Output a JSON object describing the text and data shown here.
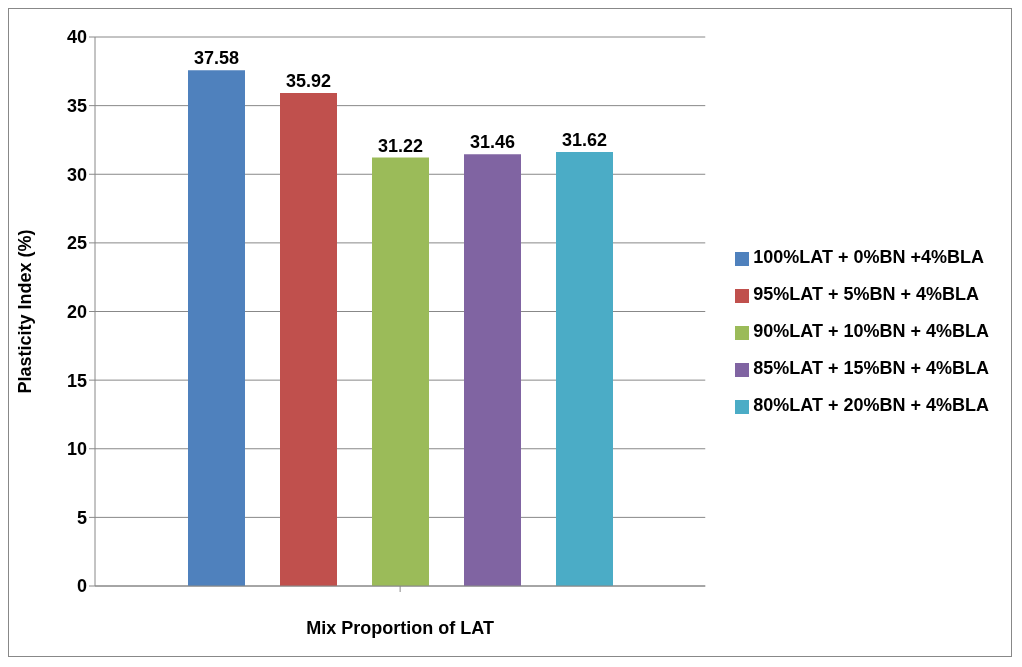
{
  "chart_data": {
    "type": "bar",
    "xlabel": "Mix Proportion of LAT",
    "ylabel": "Plasticity Index (%)",
    "categories": [
      null
    ],
    "series": [
      {
        "name": "100%LAT + 0%BN +4%BLA",
        "color": "#4f81bd",
        "values": [
          37.58
        ]
      },
      {
        "name": "95%LAT + 5%BN + 4%BLA",
        "color": "#c0504d",
        "values": [
          35.92
        ]
      },
      {
        "name": "90%LAT + 10%BN + 4%BLA",
        "color": "#9bbb59",
        "values": [
          31.22
        ]
      },
      {
        "name": "85%LAT + 15%BN + 4%BLA",
        "color": "#8064a2",
        "values": [
          31.46
        ]
      },
      {
        "name": "80%LAT + 20%BN + 4%BLA",
        "color": "#4bacc6",
        "values": [
          31.62
        ]
      }
    ],
    "ylim": [
      0,
      40
    ],
    "yticks": [
      0,
      5,
      10,
      15,
      20,
      25,
      30,
      35,
      40
    ],
    "grid": "y",
    "legend": "right",
    "data_labels": true
  }
}
